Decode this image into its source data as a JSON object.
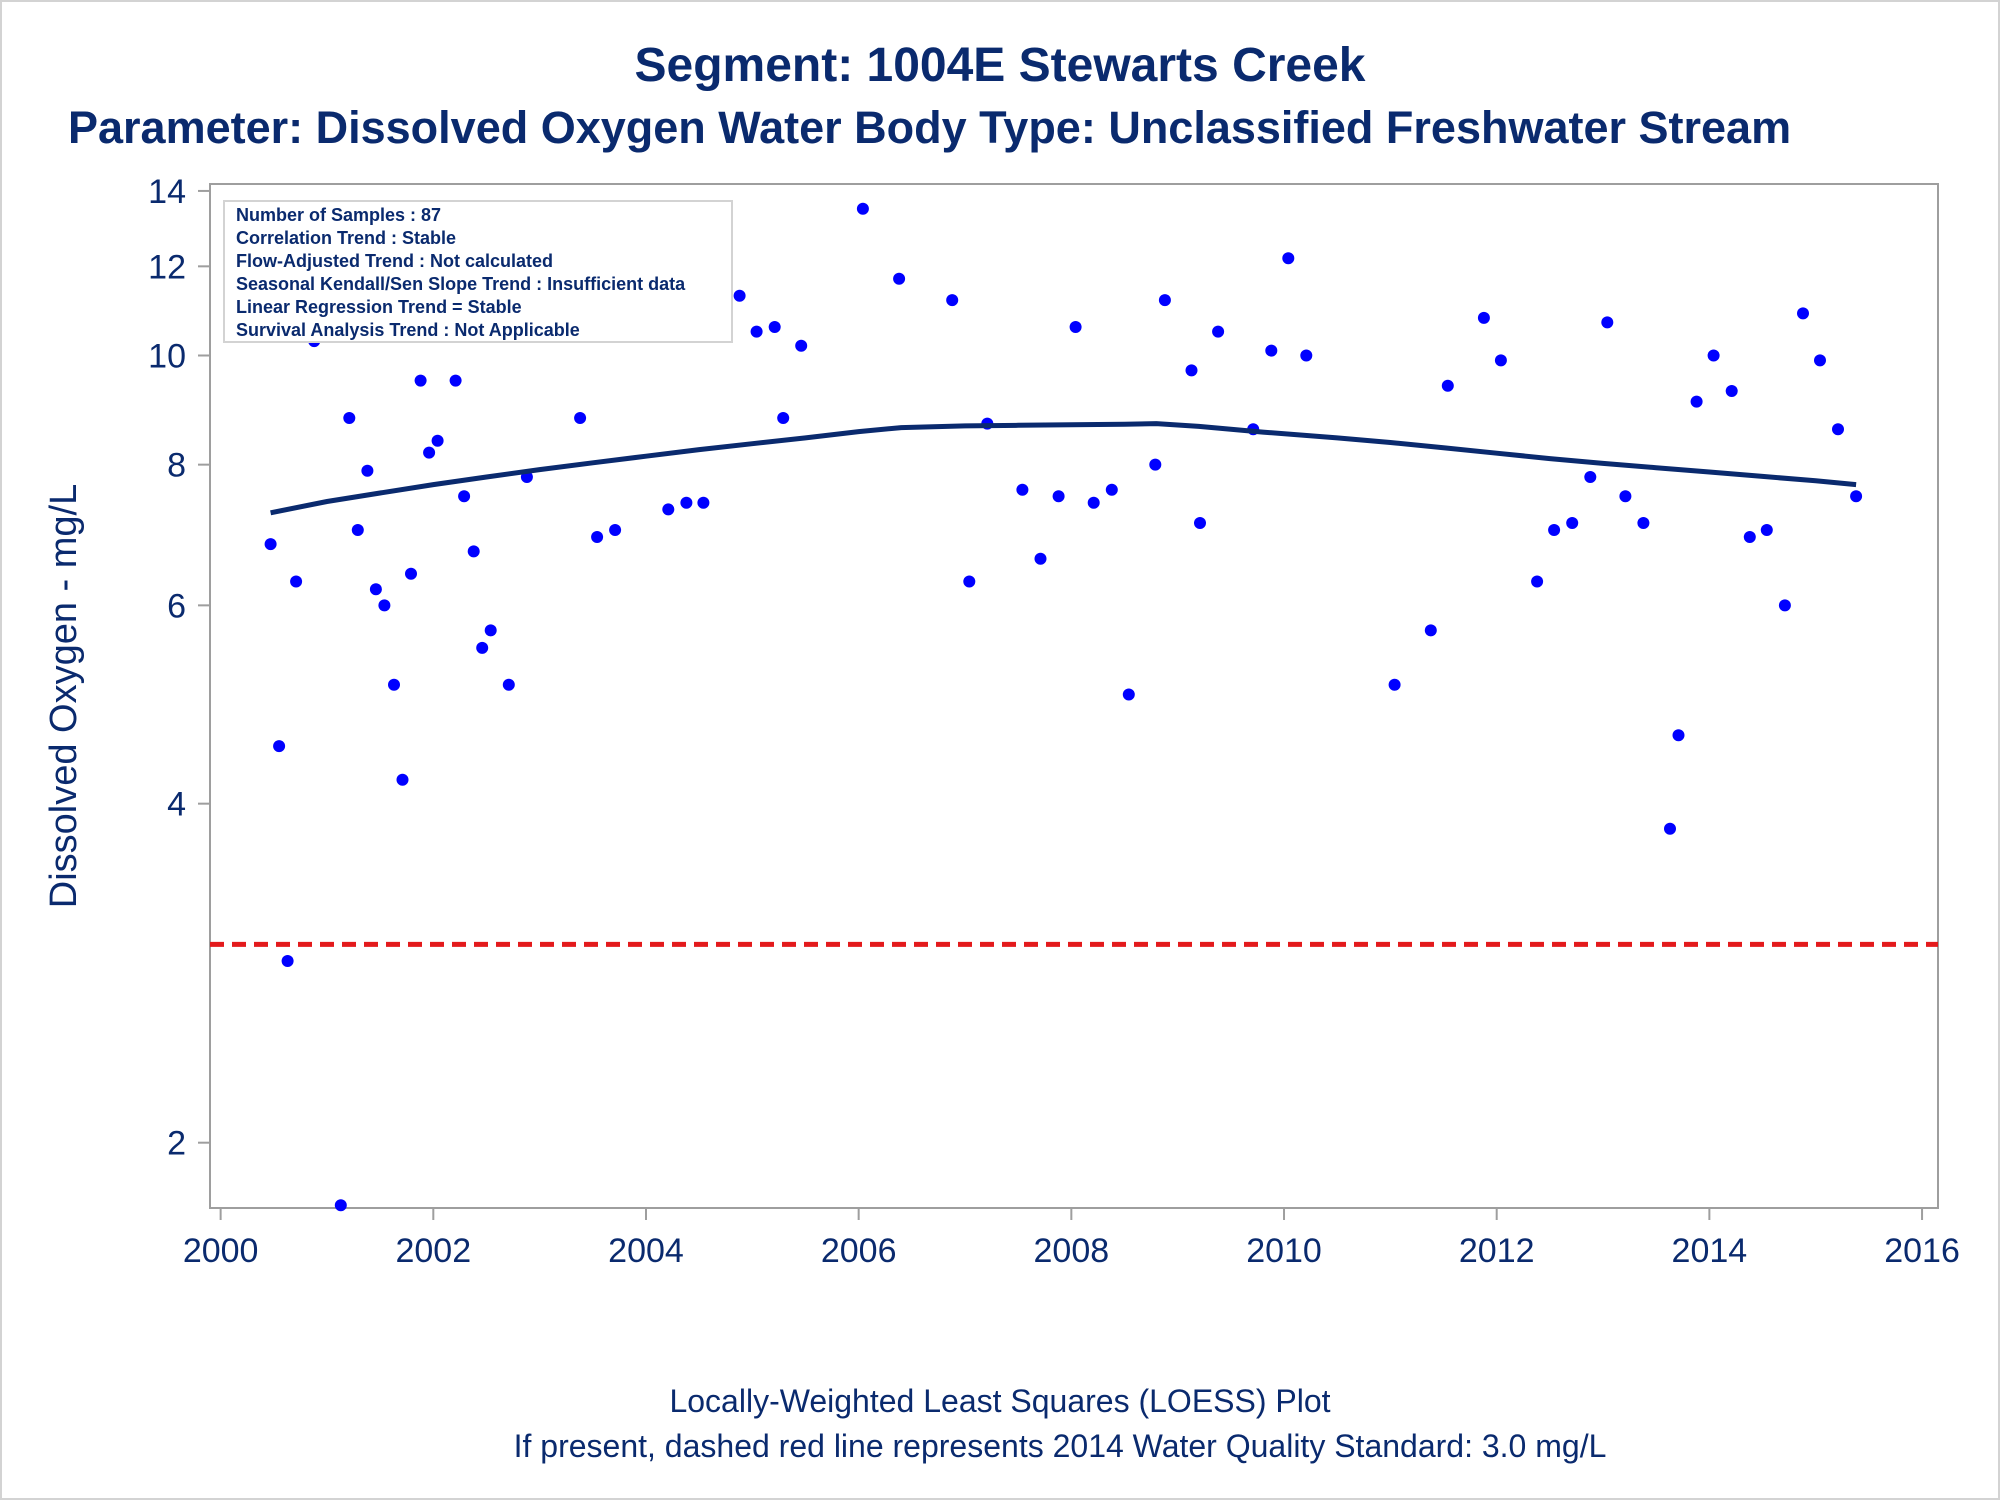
{
  "title": "Segment: 1004E  Stewarts Creek",
  "subtitle": "Parameter: Dissolved Oxygen   Water Body Type: Unclassified Freshwater Stream",
  "footer": {
    "line1": "Locally-Weighted Least Squares (LOESS) Plot",
    "line2": "If present, dashed red line represents 2014 Water Quality Standard: 3.0 mg/L"
  },
  "info_box": [
    "Number of Samples : 87",
    "Correlation Trend : Stable",
    "Flow-Adjusted Trend : Not calculated",
    "Seasonal Kendall/Sen Slope Trend : Insufficient data",
    "Linear Regression Trend = Stable",
    "Survival Analysis Trend : Not Applicable"
  ],
  "colors": {
    "points": "#0000ff",
    "loess": "#0a2a6e",
    "standard": "#e31a1c",
    "text": "#0a2a6e",
    "axis": "#9e9e9e"
  },
  "chart_data": {
    "type": "scatter",
    "xlabel": "",
    "ylabel": "Dissolved Oxygen - mg/L",
    "x_ticks": [
      2000,
      2002,
      2004,
      2006,
      2008,
      2010,
      2012,
      2014,
      2016
    ],
    "y_ticks": [
      2,
      4,
      6,
      8,
      10,
      12,
      14
    ],
    "xlim": [
      1999.9,
      2016.15
    ],
    "ylim": [
      1.75,
      14.2
    ],
    "y_scale": "log",
    "grid": false,
    "standard_line": 3.0,
    "points": [
      [
        2000.47,
        6.8
      ],
      [
        2000.55,
        4.5
      ],
      [
        2000.63,
        2.9
      ],
      [
        2000.71,
        6.3
      ],
      [
        2000.79,
        10.8
      ],
      [
        2000.88,
        10.3
      ],
      [
        2000.96,
        11.0
      ],
      [
        2001.04,
        11.0
      ],
      [
        2001.13,
        1.76
      ],
      [
        2001.21,
        8.8
      ],
      [
        2001.29,
        7.0
      ],
      [
        2001.38,
        7.9
      ],
      [
        2001.46,
        6.2
      ],
      [
        2001.54,
        6.0
      ],
      [
        2001.63,
        5.1
      ],
      [
        2001.71,
        4.2
      ],
      [
        2001.79,
        6.4
      ],
      [
        2001.88,
        9.5
      ],
      [
        2001.96,
        8.2
      ],
      [
        2002.04,
        8.4
      ],
      [
        2002.13,
        10.5
      ],
      [
        2002.21,
        9.5
      ],
      [
        2002.29,
        7.5
      ],
      [
        2002.38,
        6.7
      ],
      [
        2002.46,
        5.5
      ],
      [
        2002.54,
        5.7
      ],
      [
        2002.71,
        5.1
      ],
      [
        2002.88,
        7.8
      ],
      [
        2003.38,
        8.8
      ],
      [
        2003.54,
        6.9
      ],
      [
        2003.71,
        7.0
      ],
      [
        2003.88,
        10.8
      ],
      [
        2004.04,
        10.5
      ],
      [
        2004.21,
        7.3
      ],
      [
        2004.38,
        7.4
      ],
      [
        2004.54,
        7.4
      ],
      [
        2004.71,
        10.5
      ],
      [
        2004.88,
        11.3
      ],
      [
        2005.04,
        10.5
      ],
      [
        2005.21,
        10.6
      ],
      [
        2005.29,
        8.8
      ],
      [
        2005.46,
        10.2
      ],
      [
        2006.04,
        13.5
      ],
      [
        2006.38,
        11.7
      ],
      [
        2006.88,
        11.2
      ],
      [
        2007.04,
        6.3
      ],
      [
        2007.21,
        8.7
      ],
      [
        2007.54,
        7.6
      ],
      [
        2007.71,
        6.6
      ],
      [
        2007.88,
        7.5
      ],
      [
        2008.04,
        10.6
      ],
      [
        2008.21,
        7.4
      ],
      [
        2008.38,
        7.6
      ],
      [
        2008.54,
        5.0
      ],
      [
        2008.79,
        8.0
      ],
      [
        2008.88,
        11.2
      ],
      [
        2009.13,
        9.7
      ],
      [
        2009.21,
        7.1
      ],
      [
        2009.38,
        10.5
      ],
      [
        2009.71,
        8.6
      ],
      [
        2009.88,
        10.1
      ],
      [
        2010.04,
        12.2
      ],
      [
        2010.21,
        10.0
      ],
      [
        2011.04,
        5.1
      ],
      [
        2011.38,
        5.7
      ],
      [
        2011.54,
        9.4
      ],
      [
        2011.88,
        10.8
      ],
      [
        2012.04,
        9.9
      ],
      [
        2012.38,
        6.3
      ],
      [
        2012.54,
        7.0
      ],
      [
        2012.71,
        7.1
      ],
      [
        2012.88,
        7.8
      ],
      [
        2013.04,
        10.7
      ],
      [
        2013.21,
        7.5
      ],
      [
        2013.38,
        7.1
      ],
      [
        2013.63,
        3.8
      ],
      [
        2013.71,
        4.6
      ],
      [
        2013.88,
        9.1
      ],
      [
        2014.04,
        10.0
      ],
      [
        2014.21,
        9.3
      ],
      [
        2014.38,
        6.9
      ],
      [
        2014.54,
        7.0
      ],
      [
        2014.71,
        6.0
      ],
      [
        2014.88,
        10.9
      ],
      [
        2015.04,
        9.9
      ],
      [
        2015.21,
        8.6
      ],
      [
        2015.38,
        7.5
      ]
    ],
    "loess": {
      "x": [
        2000.47,
        2001.0,
        2001.5,
        2002.0,
        2002.5,
        2003.0,
        2003.5,
        2004.0,
        2004.5,
        2005.0,
        2005.5,
        2006.0,
        2006.4,
        2007.0,
        2007.5,
        2008.0,
        2008.5,
        2008.8,
        2009.2,
        2009.8,
        2010.5,
        2011.0,
        2011.5,
        2012.0,
        2012.5,
        2013.0,
        2013.5,
        2014.0,
        2014.5,
        2015.0,
        2015.38
      ],
      "y": [
        7.25,
        7.42,
        7.55,
        7.68,
        7.8,
        7.92,
        8.03,
        8.14,
        8.25,
        8.35,
        8.45,
        8.56,
        8.63,
        8.66,
        8.67,
        8.68,
        8.69,
        8.7,
        8.65,
        8.55,
        8.45,
        8.37,
        8.28,
        8.19,
        8.1,
        8.02,
        7.95,
        7.88,
        7.81,
        7.74,
        7.68
      ]
    }
  }
}
